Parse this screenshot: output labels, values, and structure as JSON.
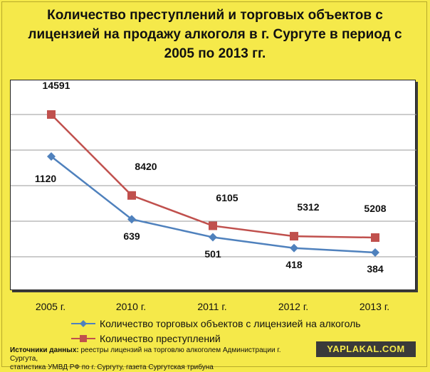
{
  "chart_data": {
    "type": "line",
    "title": "Количество преступлений и торговых объектов с лицензией на продажу алкоголя в г. Сургуте в период с 2005 по 2013 гг.",
    "categories": [
      "2005 г.",
      "2010 г.",
      "2011 г.",
      "2012 г.",
      "2013 г."
    ],
    "series": [
      {
        "name": "Количество торговых объектов с лицензией  на алкоголь",
        "values": [
          1120,
          639,
          501,
          418,
          384
        ],
        "color": "#4f81bd",
        "marker": "diamond"
      },
      {
        "name": "Количество преступлений",
        "values": [
          14591,
          8420,
          6105,
          5312,
          5208
        ],
        "color": "#c0504d",
        "marker": "square"
      }
    ],
    "grid": true,
    "legend": "bottom"
  },
  "source": {
    "label": "Источники данных:",
    "text_line1": " реестры лицензий на торговлю алкоголем Администрации г. Сургута,",
    "text_line2": "статистика УМВД РФ по г. Сургуту,  газета Сургутская трибуна"
  },
  "watermark": "YAPLAKAL.COM"
}
